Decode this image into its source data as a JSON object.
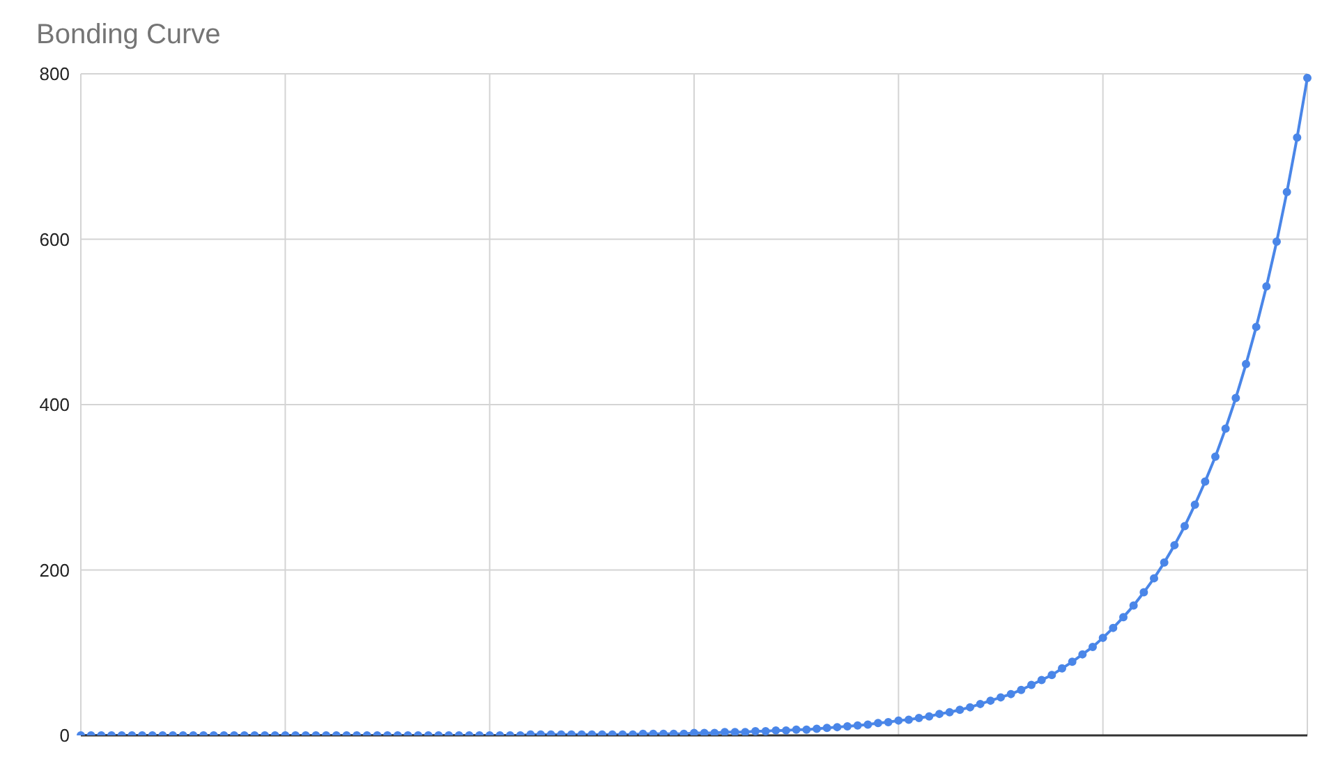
{
  "chart_data": {
    "type": "line",
    "title": "Bonding Curve",
    "categories": [
      null,
      null,
      null,
      null,
      null,
      null,
      null,
      null,
      null,
      null,
      null,
      null,
      null,
      null,
      null,
      null,
      null,
      null,
      null,
      null,
      null,
      null,
      null,
      null,
      null,
      null,
      null,
      null,
      null,
      null,
      null,
      null,
      null,
      null,
      null,
      null,
      null,
      null,
      null,
      null,
      null,
      null,
      null,
      null,
      null,
      null,
      null,
      null,
      null,
      null,
      null,
      null,
      null,
      null,
      null,
      null,
      null,
      null,
      null,
      null,
      null,
      null,
      null,
      null,
      null,
      null,
      null,
      null,
      null,
      null,
      null,
      null,
      null,
      null,
      null,
      null,
      null,
      null,
      null,
      null,
      null,
      null,
      null,
      null,
      null,
      null,
      null,
      null,
      null,
      null,
      null,
      null,
      null,
      null,
      null,
      null,
      null,
      null,
      null,
      null,
      null,
      null,
      null,
      null,
      null,
      null,
      null,
      null,
      null,
      null,
      null,
      null,
      null,
      null,
      null,
      null,
      null,
      null,
      null,
      null,
      null
    ],
    "series": [
      {
        "color": "#4a86e8",
        "values": [
          0,
          0,
          0,
          0,
          0,
          0,
          0,
          0,
          0,
          0,
          0,
          0,
          0,
          0,
          0,
          0,
          0,
          0,
          0,
          0,
          0,
          0,
          0,
          0,
          0,
          0,
          0,
          0,
          0,
          0,
          0,
          0,
          0,
          0,
          0,
          0,
          0,
          0,
          0,
          0,
          0,
          0,
          0,
          0,
          1,
          1,
          1,
          1,
          1,
          1,
          1,
          1,
          1,
          1,
          1,
          2,
          2,
          2,
          2,
          2,
          3,
          3,
          3,
          4,
          4,
          4,
          5,
          5,
          6,
          6,
          7,
          7,
          8,
          9,
          10,
          11,
          12,
          13,
          15,
          16,
          18,
          19,
          21,
          23,
          26,
          28,
          31,
          34,
          38,
          42,
          46,
          50,
          55,
          61,
          67,
          73,
          81,
          89,
          98,
          107,
          118,
          130,
          143,
          157,
          173,
          190,
          209,
          230,
          253,
          279,
          307,
          337,
          371,
          408,
          449,
          494,
          543,
          597,
          657,
          723,
          795
        ]
      }
    ],
    "ylim": [
      0,
      800
    ],
    "yticks": [
      0,
      200,
      400,
      600,
      800
    ],
    "tick_labels": "y",
    "grid": true,
    "marker": "circle",
    "line_style": "solid"
  }
}
